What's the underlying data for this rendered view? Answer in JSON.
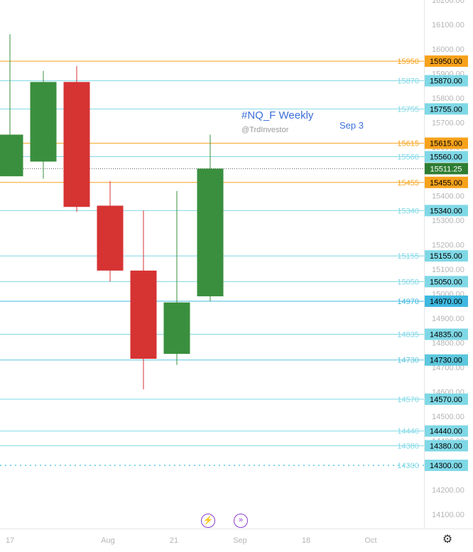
{
  "chart_data": {
    "type": "candlestick",
    "title": "#NQ_F Weekly",
    "author": "@TrdInvestor",
    "annotation": "Sep 3",
    "price_axis": {
      "range": [
        14050,
        16220
      ],
      "ticks": [
        14100,
        14200,
        14300,
        14400,
        14500,
        14600,
        14700,
        14800,
        14900,
        15000,
        15100,
        15200,
        15300,
        15400,
        15500,
        15600,
        15700,
        15800,
        15900,
        16000,
        16100,
        16200
      ],
      "tick_labels": [
        "14100.00",
        "14200.00",
        "14300.00",
        "14400.00",
        "14500.00",
        "14600.00",
        "14700.00",
        "14800.00",
        "14900.00",
        "15000.00",
        "15100.00",
        "15200.00",
        "15300.00",
        "15400.00",
        "15500.00",
        "15600.00",
        "15700.00",
        "15800.00",
        "15900.00",
        "16000.00",
        "16100.00",
        "16200.00"
      ]
    },
    "time_axis": {
      "labels": [
        "17",
        "Aug",
        "21",
        "Sep",
        "18",
        "Oct"
      ]
    },
    "candles": [
      {
        "open": 15480,
        "high": 16060,
        "low": 15480,
        "close": 15650
      },
      {
        "open": 15540,
        "high": 15910,
        "low": 15470,
        "close": 15865
      },
      {
        "open": 15865,
        "high": 15930,
        "low": 15335,
        "close": 15355
      },
      {
        "open": 15360,
        "high": 15460,
        "low": 15050,
        "close": 15095
      },
      {
        "open": 15095,
        "high": 15340,
        "low": 14610,
        "close": 14735
      },
      {
        "open": 14755,
        "high": 15420,
        "low": 14710,
        "close": 14965
      },
      {
        "open": 14990,
        "high": 15650,
        "low": 14970,
        "close": 15511.25
      }
    ],
    "levels": [
      {
        "value": 15950,
        "label": "15950",
        "tag": "15950.00",
        "color": "#f7a21b",
        "tag_text": "#000000",
        "style": "solid"
      },
      {
        "value": 15870,
        "label": "15870",
        "tag": "15870.00",
        "color": "#7fd8e6",
        "tag_text": "#000000",
        "style": "solid"
      },
      {
        "value": 15755,
        "label": "15755",
        "tag": "15755.00",
        "color": "#7fd8e6",
        "tag_text": "#000000",
        "style": "solid"
      },
      {
        "value": 15615,
        "label": "15615",
        "tag": "15615.00",
        "color": "#f7a21b",
        "tag_text": "#000000",
        "style": "solid"
      },
      {
        "value": 15560,
        "label": "15560",
        "tag": "15560.00",
        "color": "#7fd8e6",
        "tag_text": "#000000",
        "style": "solid"
      },
      {
        "value": 15455,
        "label": "15455",
        "tag": "15455.00",
        "color": "#f7a21b",
        "tag_text": "#000000",
        "style": "solid"
      },
      {
        "value": 15340,
        "label": "15340",
        "tag": "15340.00",
        "color": "#7fd8e6",
        "tag_text": "#000000",
        "style": "solid"
      },
      {
        "value": 15155,
        "label": "15155",
        "tag": "15155.00",
        "color": "#7fd8e6",
        "tag_text": "#000000",
        "style": "solid"
      },
      {
        "value": 15050,
        "label": "15050",
        "tag": "15050.00",
        "color": "#7fd8e6",
        "tag_text": "#000000",
        "style": "solid"
      },
      {
        "value": 14970,
        "label": "14970",
        "tag": "14970.00",
        "color": "#3fb8e0",
        "tag_text": "#000000",
        "style": "solid"
      },
      {
        "value": 14835,
        "label": "14835",
        "tag": "14835.00",
        "color": "#7fd8e6",
        "tag_text": "#000000",
        "style": "solid"
      },
      {
        "value": 14730,
        "label": "14730",
        "tag": "14730.00",
        "color": "#5cc7dd",
        "tag_text": "#000000",
        "style": "solid"
      },
      {
        "value": 14570,
        "label": "14570",
        "tag": "14570.00",
        "color": "#7fd8e6",
        "tag_text": "#000000",
        "style": "solid"
      },
      {
        "value": 14440,
        "label": "14440",
        "tag": "14440.00",
        "color": "#7fd8e6",
        "tag_text": "#000000",
        "style": "solid"
      },
      {
        "value": 14380,
        "label": "14380",
        "tag": "14380.00",
        "color": "#7fd8e6",
        "tag_text": "#000000",
        "style": "solid"
      },
      {
        "value": 14300,
        "label": "14300",
        "tag": "14300.00",
        "color": "#7fd8e6",
        "tag_text": "#000000",
        "style": "dotted"
      }
    ],
    "last_price": {
      "value": 15511.25,
      "tag": "15511.25",
      "color": "#2e7d32"
    },
    "colors": {
      "up": "#3a8f3e",
      "down": "#d63333",
      "grid_text": "#b5b5b5"
    }
  },
  "toolbar": {
    "bolt_icon": "lightning-icon",
    "skip_icon": "skip-forward-icon",
    "settings_icon": "gear-icon"
  }
}
